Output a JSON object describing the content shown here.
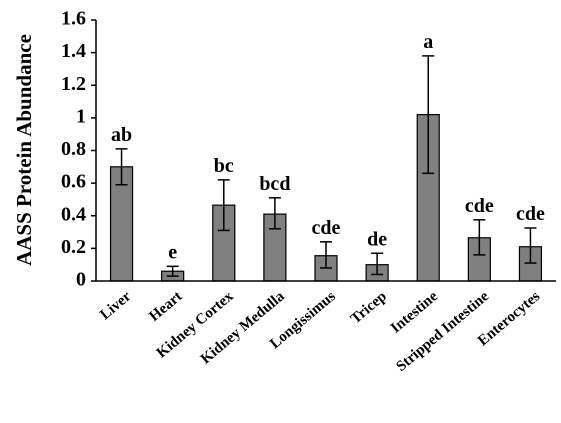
{
  "chart_data": {
    "type": "bar",
    "ylabel": "AASS Protein Abundance",
    "xlabel": "",
    "ylim": [
      0,
      1.6
    ],
    "yticks": [
      0,
      0.2,
      0.4,
      0.6,
      0.8,
      1,
      1.2,
      1.4,
      1.6
    ],
    "ytick_labels": [
      "0",
      "0.2",
      "0.4",
      "0.6",
      "0.8",
      "1",
      "1.2",
      "1.4",
      "1.6"
    ],
    "grid": false,
    "legend": "none",
    "bar_color": "#808080",
    "categories": [
      "Liver",
      "Heart",
      "Kidney Cortex",
      "Kidney Medulla",
      "Longissimus",
      "Tricep",
      "Intestine",
      "Stripped Intestine",
      "Enterocytes"
    ],
    "values": [
      0.7,
      0.06,
      0.465,
      0.41,
      0.155,
      0.1,
      1.02,
      0.265,
      0.21
    ],
    "error_low": [
      0.59,
      0.03,
      0.31,
      0.32,
      0.08,
      0.04,
      0.66,
      0.16,
      0.11
    ],
    "error_high": [
      0.81,
      0.09,
      0.62,
      0.51,
      0.24,
      0.17,
      1.38,
      0.375,
      0.325
    ],
    "significance_labels": [
      "ab",
      "e",
      "bc",
      "bcd",
      "cde",
      "de",
      "a",
      "cde",
      "cde"
    ]
  }
}
